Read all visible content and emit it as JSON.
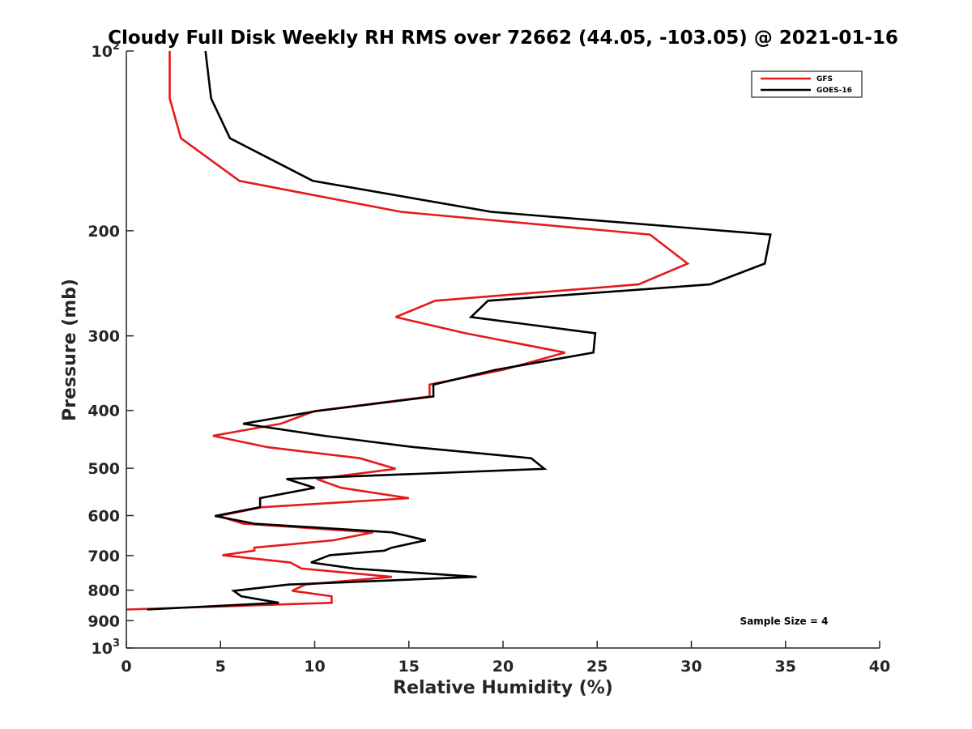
{
  "chart_data": {
    "type": "line",
    "title": "Cloudy Full Disk Weekly RH RMS over 72662 (44.05, -103.05) @ 2021-01-16",
    "xlabel": "Relative Humidity (%)",
    "ylabel": "Pressure (mb)",
    "xlim": [
      0,
      40
    ],
    "ylim": [
      100,
      1000
    ],
    "y_scale": "log",
    "y_reversed": true,
    "grid": false,
    "legend_position": "top-right",
    "x_ticks": [
      0,
      5,
      10,
      15,
      20,
      25,
      30,
      35,
      40
    ],
    "x_tick_labels": [
      "0",
      "5",
      "10",
      "15",
      "20",
      "25",
      "30",
      "35",
      "40"
    ],
    "y_ticks": [
      {
        "value": 100,
        "base": "10",
        "exp": "2",
        "label": ""
      },
      {
        "value": 200,
        "base": "",
        "exp": "",
        "label": "200"
      },
      {
        "value": 300,
        "base": "",
        "exp": "",
        "label": "300"
      },
      {
        "value": 400,
        "base": "",
        "exp": "",
        "label": "400"
      },
      {
        "value": 500,
        "base": "",
        "exp": "",
        "label": "500"
      },
      {
        "value": 600,
        "base": "",
        "exp": "",
        "label": "600"
      },
      {
        "value": 700,
        "base": "",
        "exp": "",
        "label": "700"
      },
      {
        "value": 800,
        "base": "",
        "exp": "",
        "label": "800"
      },
      {
        "value": 900,
        "base": "",
        "exp": "",
        "label": "900"
      },
      {
        "value": 1000,
        "base": "10",
        "exp": "3",
        "label": ""
      }
    ],
    "annotation": "Sample Size = 4",
    "series": [
      {
        "name": "GFS",
        "color": "#e41a1c",
        "points": [
          [
            2.3,
            100
          ],
          [
            2.3,
            120
          ],
          [
            2.9,
            140
          ],
          [
            6.0,
            165
          ],
          [
            14.6,
            186
          ],
          [
            27.8,
            203
          ],
          [
            29.8,
            227
          ],
          [
            27.2,
            246
          ],
          [
            16.4,
            262
          ],
          [
            14.3,
            279
          ],
          [
            18.0,
            297
          ],
          [
            23.3,
            320
          ],
          [
            20.0,
            342
          ],
          [
            16.1,
            362
          ],
          [
            16.1,
            379
          ],
          [
            10.0,
            401
          ],
          [
            8.2,
            421
          ],
          [
            4.6,
            441
          ],
          [
            7.5,
            461
          ],
          [
            12.4,
            481
          ],
          [
            14.3,
            501
          ],
          [
            10.1,
            521
          ],
          [
            11.4,
            539
          ],
          [
            15.0,
            561
          ],
          [
            7.2,
            581
          ],
          [
            4.9,
            601
          ],
          [
            6.2,
            619
          ],
          [
            13.1,
            640
          ],
          [
            11.0,
            660
          ],
          [
            6.8,
            679
          ],
          [
            6.8,
            687
          ],
          [
            5.1,
            699
          ],
          [
            8.7,
            719
          ],
          [
            9.3,
            736
          ],
          [
            14.1,
            760
          ],
          [
            9.5,
            783
          ],
          [
            8.8,
            802
          ],
          [
            10.9,
            819
          ],
          [
            10.9,
            840
          ],
          [
            0.0,
            862
          ]
        ]
      },
      {
        "name": "GOES-16",
        "color": "#000000",
        "points": [
          [
            4.2,
            100
          ],
          [
            4.5,
            120
          ],
          [
            5.5,
            140
          ],
          [
            9.9,
            165
          ],
          [
            19.4,
            186
          ],
          [
            34.2,
            203
          ],
          [
            33.9,
            227
          ],
          [
            31.0,
            246
          ],
          [
            19.2,
            262
          ],
          [
            18.3,
            279
          ],
          [
            24.9,
            297
          ],
          [
            24.8,
            320
          ],
          [
            19.6,
            342
          ],
          [
            16.3,
            362
          ],
          [
            16.3,
            379
          ],
          [
            10.1,
            401
          ],
          [
            6.2,
            421
          ],
          [
            10.5,
            441
          ],
          [
            15.3,
            461
          ],
          [
            21.5,
            481
          ],
          [
            22.2,
            501
          ],
          [
            8.5,
            521
          ],
          [
            10.0,
            539
          ],
          [
            7.1,
            561
          ],
          [
            7.1,
            581
          ],
          [
            4.7,
            601
          ],
          [
            6.8,
            619
          ],
          [
            14.1,
            640
          ],
          [
            15.9,
            660
          ],
          [
            14.1,
            679
          ],
          [
            13.7,
            687
          ],
          [
            10.8,
            699
          ],
          [
            9.8,
            719
          ],
          [
            12.1,
            736
          ],
          [
            18.6,
            760
          ],
          [
            8.6,
            783
          ],
          [
            5.7,
            802
          ],
          [
            6.1,
            819
          ],
          [
            8.1,
            840
          ],
          [
            1.1,
            862
          ]
        ]
      }
    ]
  }
}
